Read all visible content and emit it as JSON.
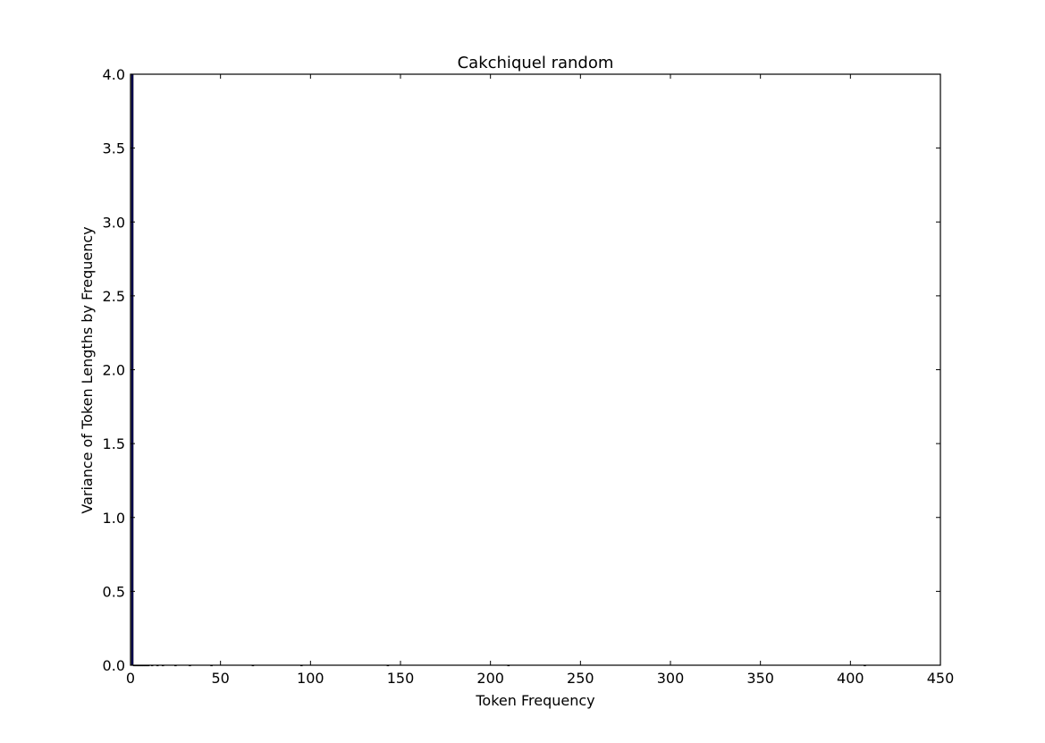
{
  "chart_data": {
    "type": "bar",
    "title": "Cakchiquel random",
    "xlabel": "Token Frequency",
    "ylabel": "Variance of Token Lengths by Frequency",
    "xlim": [
      0,
      450
    ],
    "ylim": [
      0,
      4
    ],
    "xticks": [
      "0",
      "50",
      "100",
      "150",
      "200",
      "250",
      "300",
      "350",
      "400",
      "450"
    ],
    "yticks": [
      "0.0",
      "0.5",
      "1.0",
      "1.5",
      "2.0",
      "2.5",
      "3.0",
      "3.5",
      "4.0"
    ],
    "bar_width": 0.8,
    "bar_color": "#0000ff",
    "edge_color": "#000000",
    "grid": false,
    "legend": "none",
    "bars": [
      {
        "x": 1,
        "value": 4.0
      },
      {
        "x": 2,
        "value": 0.0
      },
      {
        "x": 3,
        "value": 0.0
      },
      {
        "x": 4,
        "value": 0.0
      },
      {
        "x": 5,
        "value": 0.0
      },
      {
        "x": 6,
        "value": 0.0
      },
      {
        "x": 7,
        "value": 0.0
      },
      {
        "x": 8,
        "value": 0.0
      },
      {
        "x": 9,
        "value": 0.0
      },
      {
        "x": 10,
        "value": 0.0
      },
      {
        "x": 12,
        "value": 0.0
      },
      {
        "x": 15,
        "value": 0.0
      },
      {
        "x": 18,
        "value": 0.0
      },
      {
        "x": 25,
        "value": 0.0
      },
      {
        "x": 33,
        "value": 0.0
      },
      {
        "x": 45,
        "value": 0.0
      },
      {
        "x": 68,
        "value": 0.0
      },
      {
        "x": 95,
        "value": 0.0
      },
      {
        "x": 143,
        "value": 0.0
      },
      {
        "x": 210,
        "value": 0.0
      },
      {
        "x": 408,
        "value": 0.0
      }
    ]
  }
}
